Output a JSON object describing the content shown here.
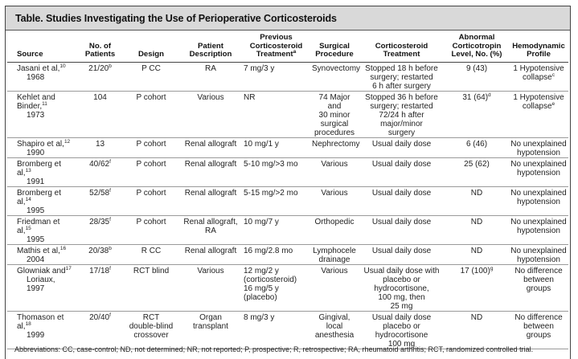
{
  "table": {
    "title": "Table. Studies Investigating the Use of Perioperative Corticosteroids",
    "headers": {
      "source": "Source",
      "patients": [
        "No. of",
        "Patients"
      ],
      "design": "Design",
      "description": [
        "Patient",
        "Description"
      ],
      "previous": [
        "Previous",
        "Corticosteroid",
        "Treatment"
      ],
      "previous_sup": "a",
      "procedure": [
        "Surgical",
        "Procedure"
      ],
      "treatment": [
        "Corticosteroid",
        "Treatment"
      ],
      "abnormal": [
        "Abnormal",
        "Corticotropin",
        "Level, No. (%)"
      ],
      "profile": [
        "Hemodynamic",
        "Profile"
      ]
    },
    "rows": [
      {
        "source": [
          "Jasani et al,",
          "1968"
        ],
        "ref": "10",
        "patients": "21/20",
        "patients_sup": "b",
        "design": [
          "P CC"
        ],
        "description": [
          "RA"
        ],
        "previous": [
          "7 mg/3 y"
        ],
        "procedure": [
          "Synovectomy"
        ],
        "treatment": [
          "Stopped 18 h before",
          "surgery; restarted",
          "6 h after surgery"
        ],
        "abnormal": "9 (43)",
        "abnormal_sup": "",
        "profile": [
          "1 Hypotensive",
          "collapse"
        ],
        "profile_sup": "c"
      },
      {
        "source": [
          "Kehlet and Binder,",
          "1973"
        ],
        "ref": "11",
        "patients": "104",
        "patients_sup": "",
        "design": [
          "P cohort"
        ],
        "description": [
          "Various"
        ],
        "previous": [
          "NR"
        ],
        "procedure": [
          "74 Major and",
          "30 minor",
          "surgical",
          "procedures"
        ],
        "treatment": [
          "Stopped 36 h before",
          "surgery; restarted",
          "72/24 h after",
          "major/minor",
          "surgery"
        ],
        "abnormal": "31 (64)",
        "abnormal_sup": "d",
        "profile": [
          "1 Hypotensive",
          "collapse"
        ],
        "profile_sup": "e"
      },
      {
        "source": [
          "Shapiro et al,",
          "1990"
        ],
        "ref": "12",
        "patients": "13",
        "patients_sup": "",
        "design": [
          "P cohort"
        ],
        "description": [
          "Renal allograft"
        ],
        "previous": [
          "10 mg/1 y"
        ],
        "procedure": [
          "Nephrectomy"
        ],
        "treatment": [
          "Usual daily dose"
        ],
        "abnormal": "6 (46)",
        "abnormal_sup": "",
        "profile": [
          "No unexplained",
          "hypotension"
        ],
        "profile_sup": ""
      },
      {
        "source": [
          "Bromberg et al,",
          "1991"
        ],
        "ref": "13",
        "patients": "40/62",
        "patients_sup": "f",
        "design": [
          "P cohort"
        ],
        "description": [
          "Renal allograft"
        ],
        "previous": [
          "5-10 mg/>3 mo"
        ],
        "procedure": [
          "Various"
        ],
        "treatment": [
          "Usual daily dose"
        ],
        "abnormal": "25 (62)",
        "abnormal_sup": "",
        "profile": [
          "No unexplained",
          "hypotension"
        ],
        "profile_sup": ""
      },
      {
        "source": [
          "Bromberg et al,",
          "1995"
        ],
        "ref": "14",
        "patients": "52/58",
        "patients_sup": "f",
        "design": [
          "P cohort"
        ],
        "description": [
          "Renal allograft"
        ],
        "previous": [
          "5-15 mg/>2 mo"
        ],
        "procedure": [
          "Various"
        ],
        "treatment": [
          "Usual daily dose"
        ],
        "abnormal": "ND",
        "abnormal_sup": "",
        "profile": [
          "No unexplained",
          "hypotension"
        ],
        "profile_sup": ""
      },
      {
        "source": [
          "Friedman et al,",
          "1995"
        ],
        "ref": "15",
        "patients": "28/35",
        "patients_sup": "f",
        "design": [
          "P cohort"
        ],
        "description": [
          "Renal allograft,",
          "RA"
        ],
        "previous": [
          "10 mg/7 y"
        ],
        "procedure": [
          "Orthopedic"
        ],
        "treatment": [
          "Usual daily dose"
        ],
        "abnormal": "ND",
        "abnormal_sup": "",
        "profile": [
          "No unexplained",
          "hypotension"
        ],
        "profile_sup": ""
      },
      {
        "source": [
          "Mathis et al,",
          "2004"
        ],
        "ref": "16",
        "patients": "20/38",
        "patients_sup": "b",
        "design": [
          "R CC"
        ],
        "description": [
          "Renal allograft"
        ],
        "previous": [
          "16 mg/2.8 mo"
        ],
        "procedure": [
          "Lymphocele",
          "drainage"
        ],
        "treatment": [
          "Usual daily dose"
        ],
        "abnormal": "ND",
        "abnormal_sup": "",
        "profile": [
          "No unexplained",
          "hypotension"
        ],
        "profile_sup": ""
      },
      {
        "source": [
          "Glowniak and",
          "Loriaux,",
          "1997"
        ],
        "ref": "17",
        "patients": "17/18",
        "patients_sup": "f",
        "design": [
          "RCT blind"
        ],
        "description": [
          "Various"
        ],
        "previous": [
          "12 mg/2 y",
          "(corticosteroid)",
          "16 mg/5 y",
          "(placebo)"
        ],
        "procedure": [
          "Various"
        ],
        "treatment": [
          "Usual daily dose with",
          "placebo or",
          "hydrocortisone,",
          "100 mg, then",
          "25 mg"
        ],
        "abnormal": "17 (100)",
        "abnormal_sup": "g",
        "profile": [
          "No difference",
          "between",
          "groups"
        ],
        "profile_sup": ""
      },
      {
        "source": [
          "Thomason et al,",
          "1999"
        ],
        "ref": "18",
        "patients": "20/40",
        "patients_sup": "f",
        "design": [
          "RCT",
          "double-blind",
          "crossover"
        ],
        "description": [
          "Organ",
          "transplant"
        ],
        "previous": [
          "8 mg/3 y"
        ],
        "procedure": [
          "Gingival, local",
          "anesthesia"
        ],
        "treatment": [
          "Usual daily dose",
          "placebo or",
          "hydrocortisone",
          "100 mg"
        ],
        "abnormal": "ND",
        "abnormal_sup": "",
        "profile": [
          "No difference",
          "between",
          "groups"
        ],
        "profile_sup": ""
      }
    ],
    "footnote": "Abbreviations: CC, case-control; ND, not determined; NR, not reported; P, prospective; R, retrospective; RA, rheumatoid arthritis; RCT, randomized controlled trial."
  }
}
